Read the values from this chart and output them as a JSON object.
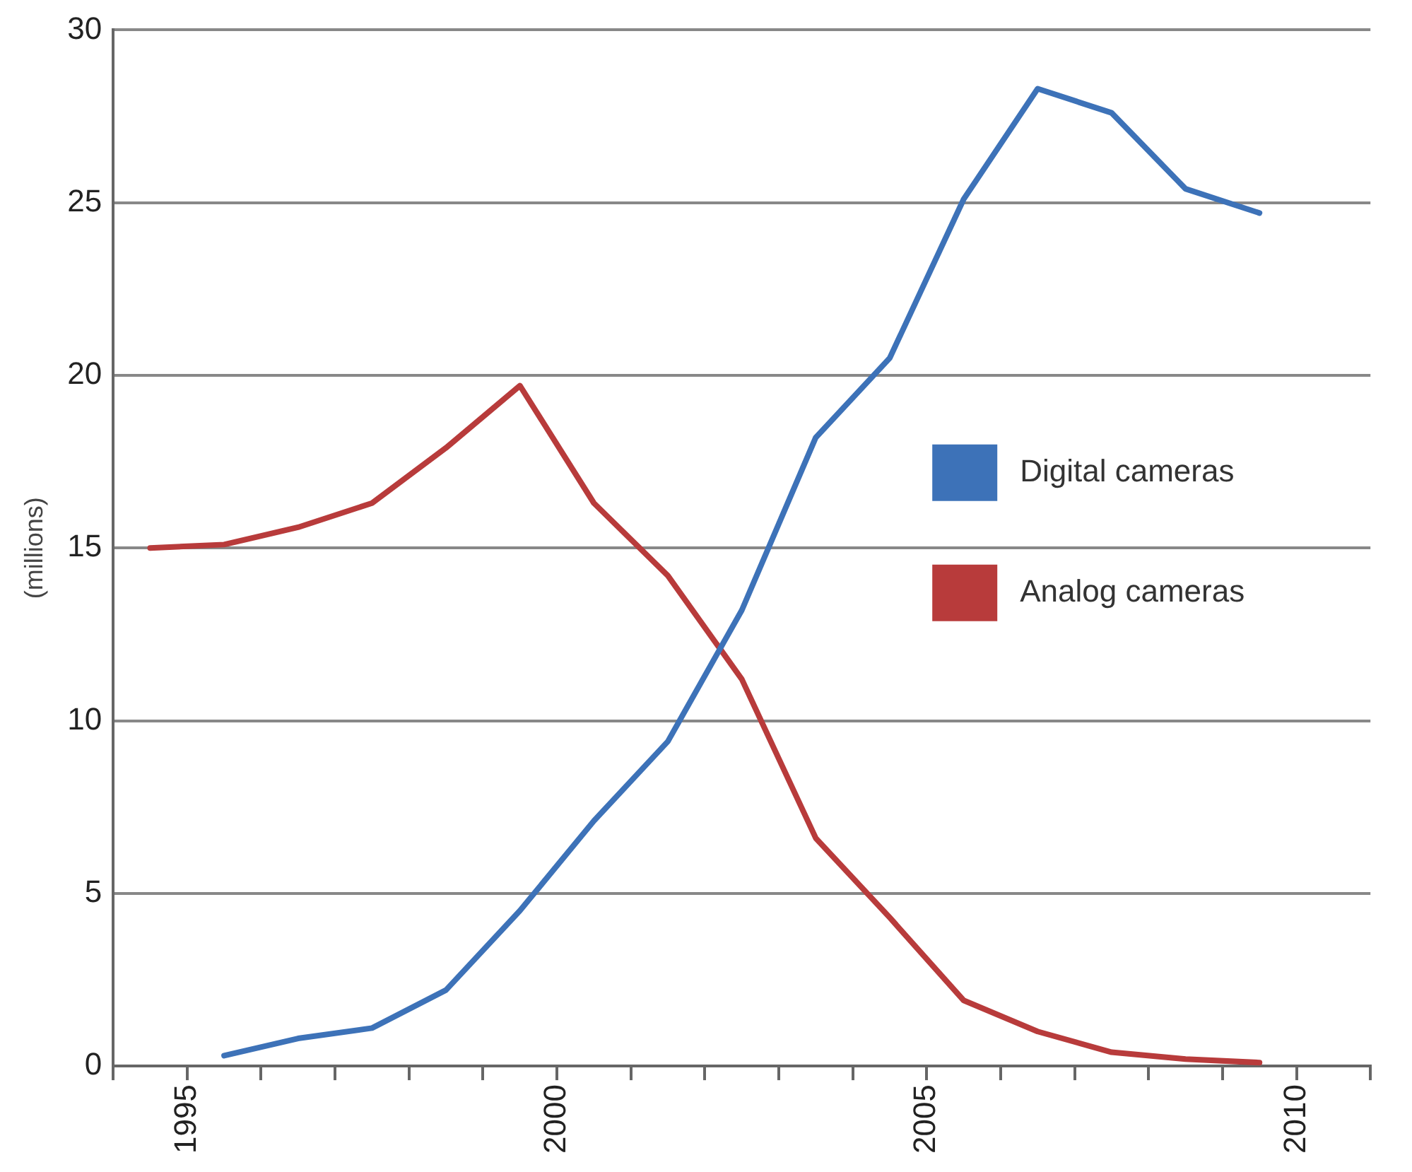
{
  "chart_data": {
    "type": "line",
    "ylabel": "(millions)",
    "x": [
      1994.5,
      1995.5,
      1996.5,
      1997.5,
      1998.5,
      1999.5,
      2000.5,
      2001.5,
      2002.5,
      2003.5,
      2004.5,
      2005.5,
      2006.5,
      2007.5,
      2008.5,
      2009.5
    ],
    "series": [
      {
        "name": "Digital cameras",
        "color": "#3d72b8",
        "values": [
          null,
          0.3,
          0.8,
          1.1,
          2.2,
          4.5,
          7.1,
          9.4,
          13.2,
          18.2,
          20.5,
          25.1,
          28.3,
          27.6,
          25.4,
          24.7
        ]
      },
      {
        "name": "Analog cameras",
        "color": "#b83b3b",
        "values": [
          15.0,
          15.1,
          15.6,
          16.3,
          17.9,
          19.7,
          16.3,
          14.2,
          11.2,
          6.6,
          4.3,
          1.9,
          1.0,
          0.4,
          0.2,
          0.1
        ]
      }
    ],
    "xlim": [
      1994,
      2011
    ],
    "xticks": [
      {
        "value": 1994,
        "label": null
      },
      1995,
      {
        "value": 1996,
        "label": null
      },
      {
        "value": 1997,
        "label": null
      },
      {
        "value": 1998,
        "label": null
      },
      {
        "value": 1999,
        "label": null
      },
      2000,
      {
        "value": 2001,
        "label": null
      },
      {
        "value": 2002,
        "label": null
      },
      {
        "value": 2003,
        "label": null
      },
      {
        "value": 2004,
        "label": null
      },
      2005,
      {
        "value": 2006,
        "label": null
      },
      {
        "value": 2007,
        "label": null
      },
      {
        "value": 2008,
        "label": null
      },
      {
        "value": 2009,
        "label": null
      },
      2010,
      {
        "value": 2011,
        "label": null
      }
    ],
    "ylim": [
      0,
      30
    ],
    "yticks": [
      0,
      5,
      10,
      15,
      20,
      25,
      30
    ],
    "grid": "y",
    "legend": "right",
    "marker": "none",
    "line_style": "solid"
  }
}
